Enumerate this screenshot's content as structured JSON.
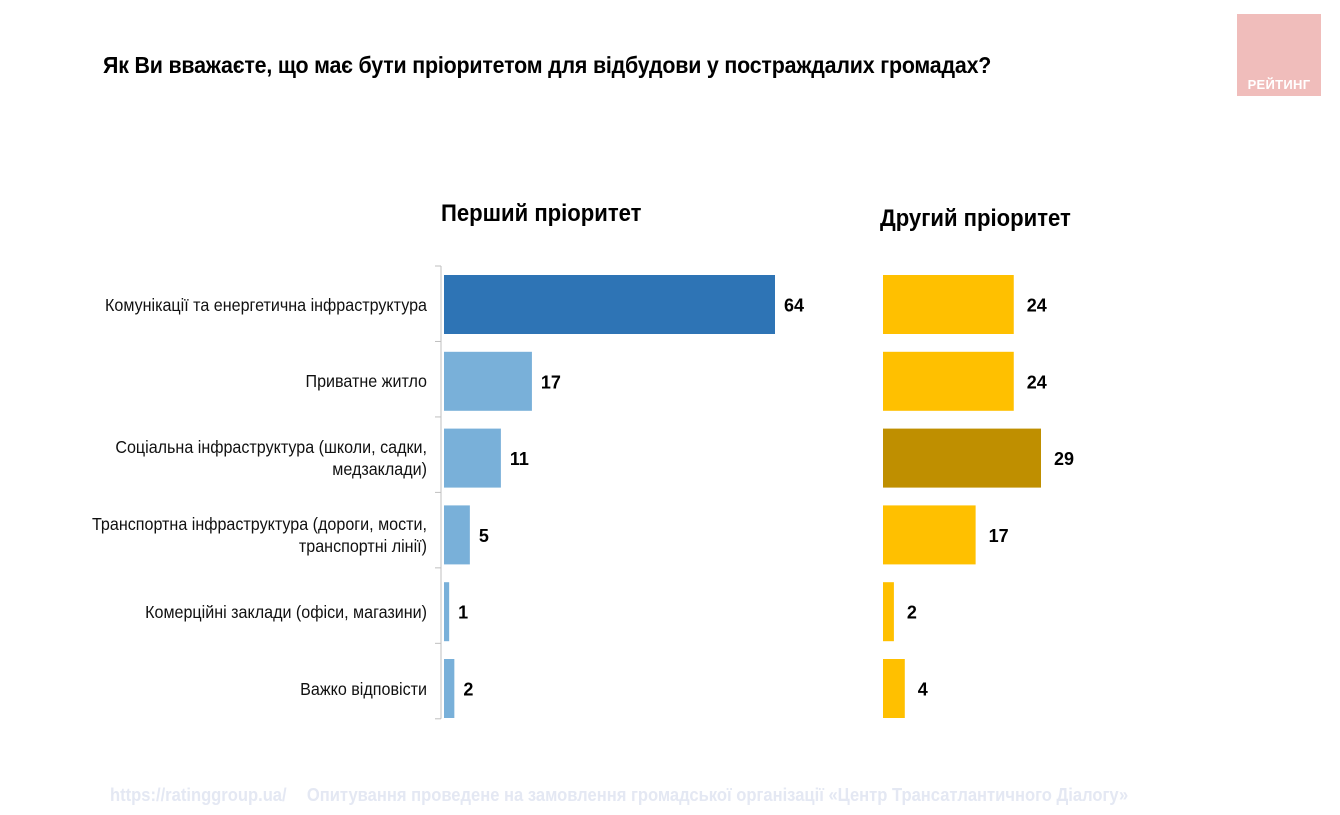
{
  "title": "Як Ви вважаєте, що має бути пріоритетом для відбудови у постраждалих громадах?",
  "logo": {
    "text": "РЕЙТИНГ",
    "color": "#f0bdbb"
  },
  "footer": {
    "url": "https://ratinggroup.ua/",
    "note": "Опитування проведене на замовлення громадської організації «Центр Трансатлантичного Діалогу»"
  },
  "chart_data": [
    {
      "type": "bar",
      "orientation": "horizontal",
      "title": "Перший пріоритет",
      "categories": [
        "Комунікації та енергетична інфраструктура",
        "Приватне житло",
        "Соціальна інфраструктура (школи, садки, медзаклади)",
        "Транспортна інфраструктура (дороги, мости, транспортні лінії)",
        "Комерційні заклади (офіси, магазини)",
        "Важко відповісти"
      ],
      "values": [
        64,
        17,
        11,
        5,
        1,
        2
      ],
      "labels": [
        "64",
        "17",
        "11",
        "5",
        "1",
        "2"
      ],
      "colors": [
        "#2e74b5",
        "#79b0d9",
        "#79b0d9",
        "#79b0d9",
        "#79b0d9",
        "#79b0d9"
      ],
      "xlim": [
        0,
        64
      ],
      "grid": false,
      "unit": "%"
    },
    {
      "type": "bar",
      "orientation": "horizontal",
      "title": "Другий пріоритет",
      "categories": [
        "Комунікації та енергетична інфраструктура",
        "Приватне житло",
        "Соціальна інфраструктура (школи, садки, медзаклади)",
        "Транспортна інфраструктура (дороги, мости, транспортні лінії)",
        "Комерційні заклади (офіси, магазини)",
        "Важко відповісти"
      ],
      "values": [
        24,
        24,
        29,
        17,
        2,
        4
      ],
      "labels": [
        "24",
        "24",
        "29",
        "17",
        "2",
        "4"
      ],
      "colors": [
        "#ffc000",
        "#ffc000",
        "#bf8f00",
        "#ffc000",
        "#ffc000",
        "#ffc000"
      ],
      "xlim": [
        0,
        29
      ],
      "grid": false,
      "unit": "%"
    }
  ],
  "category_labels_display": [
    [
      "Комунікації та енергетична інфраструктура"
    ],
    [
      "Приватне житло"
    ],
    [
      "Соціальна інфраструктура (школи, садки,",
      "медзаклади)"
    ],
    [
      "Транспортна інфраструктура (дороги, мости,",
      "транспортні лінії)"
    ],
    [
      "Комерційні заклади (офіси, магазини)"
    ],
    [
      "Важко відповісти"
    ]
  ]
}
